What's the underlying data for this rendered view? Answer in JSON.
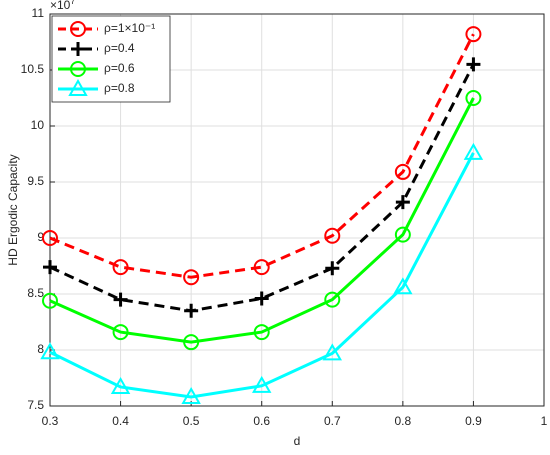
{
  "chart_data": {
    "type": "line",
    "xlabel": "d",
    "ylabel": "HD Ergodic Capacity",
    "y_multiplier": {
      "base": "×10",
      "exponent": "7"
    },
    "x": [
      0.3,
      0.4,
      0.5,
      0.6,
      0.7,
      0.8,
      0.9
    ],
    "xlim": [
      0.3,
      1
    ],
    "xticks": [
      0.3,
      0.4,
      0.5,
      0.6,
      0.7,
      0.8,
      0.9,
      1
    ],
    "ylim": [
      7.5,
      11
    ],
    "yticks": [
      7.5,
      8,
      8.5,
      9,
      9.5,
      10,
      10.5,
      11
    ],
    "grid": true,
    "legend_position": "upper-left",
    "series": [
      {
        "name": "ρ=1×10⁻¹",
        "color": "#ff0000",
        "line_style": "dashed",
        "marker": "circle",
        "values": [
          9.0,
          8.74,
          8.65,
          8.74,
          9.02,
          9.59,
          10.82
        ]
      },
      {
        "name": "ρ=0.4",
        "color": "#000000",
        "line_style": "dashed",
        "marker": "plus",
        "values": [
          8.74,
          8.45,
          8.35,
          8.46,
          8.73,
          9.32,
          10.55
        ]
      },
      {
        "name": "ρ=0.6",
        "color": "#00ff00",
        "line_style": "solid",
        "marker": "circle",
        "values": [
          8.44,
          8.16,
          8.07,
          8.16,
          8.45,
          9.03,
          10.25
        ]
      },
      {
        "name": "ρ=0.8",
        "color": "#00ffff",
        "line_style": "solid",
        "marker": "triangle",
        "values": [
          7.98,
          7.67,
          7.58,
          7.68,
          7.97,
          8.56,
          9.76
        ]
      }
    ]
  }
}
